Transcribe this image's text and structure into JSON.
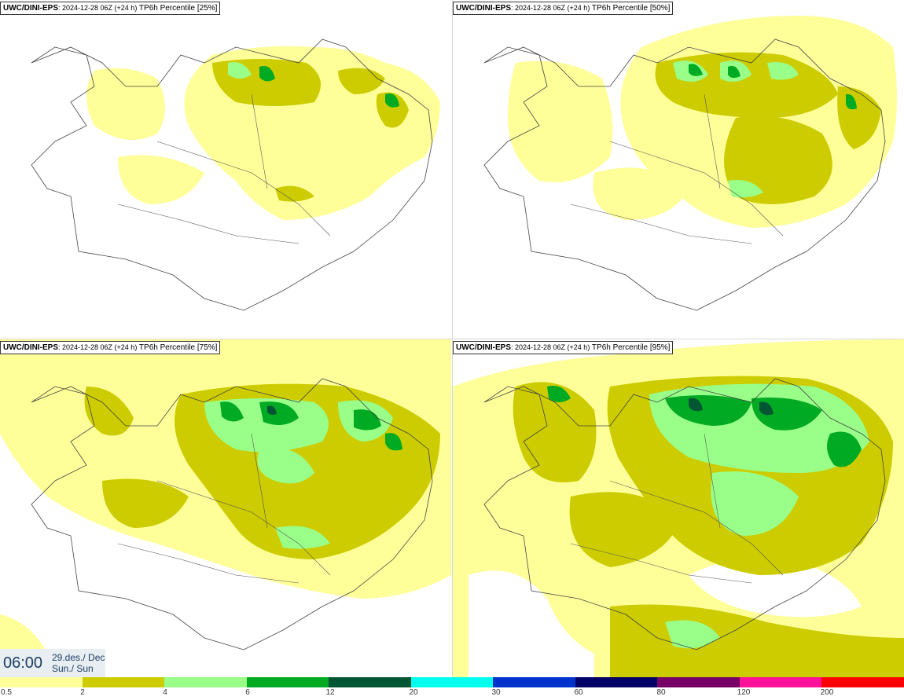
{
  "panels": [
    {
      "model": "UWC/DINI-EPS",
      "meta": ": 2024-12-28 06Z (+24 h)",
      "title": " TP6h Percentile [25%]"
    },
    {
      "model": "UWC/DINI-EPS",
      "meta": ": 2024-12-28 06Z (+24 h)",
      "title": " TP6h Percentile [50%]"
    },
    {
      "model": "UWC/DINI-EPS",
      "meta": ": 2024-12-28 06Z (+24 h)",
      "title": " TP6h Percentile [75%]"
    },
    {
      "model": "UWC/DINI-EPS",
      "meta": ": 2024-12-28 06Z (+24 h)",
      "title": " TP6h Percentile [95%]"
    }
  ],
  "valid_time": {
    "time": "06:00",
    "date": "29.des./ Dec",
    "day": "Sun./ Sun"
  },
  "legend": {
    "labels": [
      "0.5",
      "2",
      "4",
      "6",
      "12",
      "20",
      "30",
      "60",
      "80",
      "120",
      "200"
    ],
    "colors": [
      "#ffff99",
      "#cccc00",
      "#99ff88",
      "#00aa22",
      "#005533",
      "#00ffee",
      "#0033cc",
      "#000066",
      "#770066",
      "#ff1199",
      "#ff0000"
    ]
  },
  "colors": {
    "light_yellow": "#ffff99",
    "olive": "#cccc00",
    "light_green": "#99ff88",
    "green": "#00aa22",
    "dark_green": "#005533"
  }
}
